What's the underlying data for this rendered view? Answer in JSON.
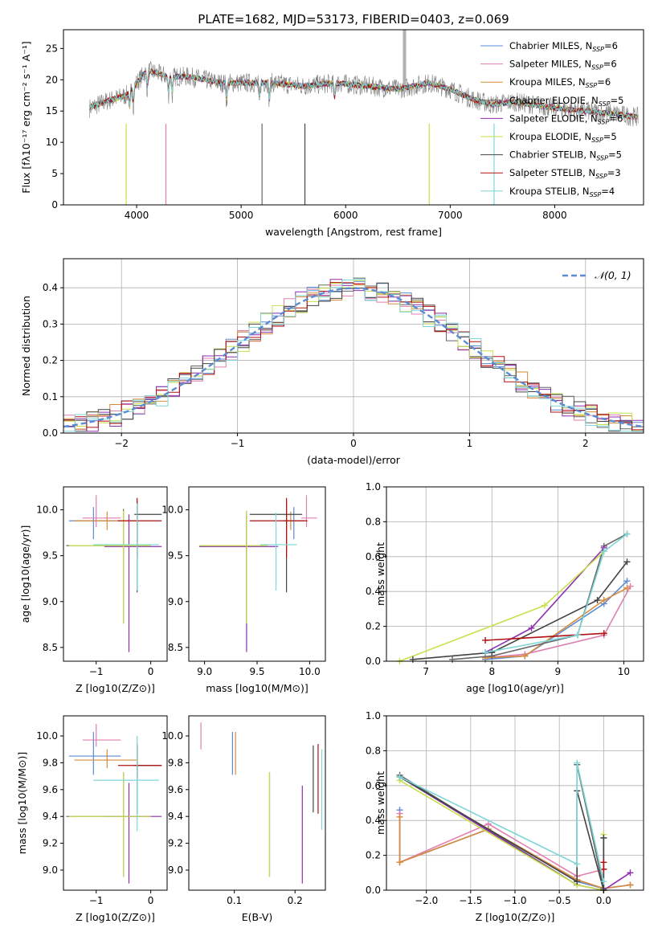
{
  "title": "PLATE=1682, MJD=53173, FIBERID=0403, z=0.069",
  "colors": [
    "#5b8bd4",
    "#e07fb0",
    "#d98a3a",
    "#666666",
    "#8e2fb0",
    "#c7e04a",
    "#444444",
    "#b01010",
    "#7fd6d6"
  ],
  "legend": [
    {
      "base": "Chabrier MILES, N",
      "sub": "SSP",
      "val": "=6"
    },
    {
      "base": "Salpeter MILES, N",
      "sub": "SSP",
      "val": "=6"
    },
    {
      "base": "Kroupa MILES, N",
      "sub": "SSP",
      "val": "=6"
    },
    {
      "base": "Chabrier ELODIE, N",
      "sub": "SSP",
      "val": "=5"
    },
    {
      "base": "Salpeter ELODIE, N",
      "sub": "SSP",
      "val": "=6"
    },
    {
      "base": "Kroupa ELODIE, N",
      "sub": "SSP",
      "val": "=5"
    },
    {
      "base": "Chabrier STELIB, N",
      "sub": "SSP",
      "val": "=5"
    },
    {
      "base": "Salpeter STELIB, N",
      "sub": "SSP",
      "val": "=3"
    },
    {
      "base": "Kroupa STELIB, N",
      "sub": "SSP",
      "val": "=4"
    }
  ],
  "chart_data": [
    {
      "id": "spectrum",
      "type": "line",
      "xlabel": "wavelength [Angstrom, rest frame]",
      "ylabel": "Flux [fλ10⁻¹⁷ erg cm⁻² s⁻¹ A⁻¹]",
      "xlim": [
        3300,
        8850
      ],
      "ylim": [
        0,
        28
      ],
      "xticks": [
        4000,
        5000,
        6000,
        7000,
        8000
      ],
      "yticks": [
        0,
        5,
        10,
        15,
        20,
        25
      ],
      "continuum_x": [
        3550,
        3700,
        3900,
        4100,
        4300,
        4500,
        4800,
        5000,
        5300,
        5600,
        5900,
        6200,
        6500,
        6800,
        7000,
        7200,
        7400,
        7600,
        7800,
        8000,
        8300,
        8600,
        8800
      ],
      "continuum_y": [
        15.5,
        16.5,
        17.5,
        21.5,
        20.5,
        20.5,
        19.5,
        19.5,
        19.5,
        19.0,
        19.5,
        19.0,
        18.5,
        19.5,
        18.5,
        17.0,
        16.0,
        16.5,
        16.0,
        15.5,
        15.0,
        14.5,
        14.0
      ]
    },
    {
      "id": "residuals",
      "type": "step-histogram",
      "xlabel": "(data-model)/error",
      "ylabel": "Normed distribution",
      "xlim": [
        -2.5,
        2.5
      ],
      "ylim": [
        0,
        0.48
      ],
      "xticks": [
        -2,
        -1,
        0,
        1,
        2
      ],
      "yticks": [
        0.0,
        0.1,
        0.2,
        0.3,
        0.4
      ],
      "reference_label": "N(0,1)",
      "reference_mean": 0,
      "reference_sigma": 1
    },
    {
      "id": "age_vs_Z",
      "type": "errorbar",
      "xlabel": "Z [log10(Z/Z⊙)]",
      "ylabel": "age  [log10(age/yr)]",
      "xlim": [
        -1.6,
        0.3
      ],
      "ylim": [
        8.35,
        10.25
      ],
      "xticks": [
        -1,
        0
      ],
      "yticks": [
        8.5,
        9.0,
        9.5,
        10.0
      ],
      "points": [
        {
          "x": -1.05,
          "y": 9.88,
          "xerr": [
            0.45,
            0.5
          ],
          "yerr": [
            0.2,
            0.15
          ]
        },
        {
          "x": -1.0,
          "y": 9.91,
          "xerr": [
            0.25,
            0.45
          ],
          "yerr": [
            0.1,
            0.25
          ]
        },
        {
          "x": -0.8,
          "y": 9.88,
          "xerr": [
            0.6,
            0.55
          ],
          "yerr": [
            0.1,
            0.1
          ]
        },
        {
          "x": -0.5,
          "y": 9.61,
          "xerr": [
            1.05,
            0.5
          ],
          "yerr": [
            0.85,
            0.4
          ]
        },
        {
          "x": -0.4,
          "y": 9.6,
          "xerr": [
            0.45,
            0.6
          ],
          "yerr": [
            1.15,
            0.35
          ]
        },
        {
          "x": -0.5,
          "y": 9.61,
          "xerr": [
            1.0,
            0.5
          ],
          "yerr": [
            0.85,
            0.38
          ]
        },
        {
          "x": -0.25,
          "y": 9.95,
          "xerr": [
            0.05,
            0.45
          ],
          "yerr": [
            0.85,
            0.15
          ]
        },
        {
          "x": -0.25,
          "y": 9.88,
          "xerr": [
            0.35,
            0.45
          ],
          "yerr": [
            0.4,
            0.25
          ]
        },
        {
          "x": -0.25,
          "y": 9.62,
          "xerr": [
            0.8,
            0.4
          ],
          "yerr": [
            0.5,
            0.45
          ]
        }
      ]
    },
    {
      "id": "age_vs_mass",
      "type": "errorbar",
      "xlabel": "mass [log10(M/M⊙)]",
      "ylabel": "",
      "xlim": [
        8.85,
        10.15
      ],
      "ylim": [
        8.35,
        10.25
      ],
      "xticks": [
        9.0,
        9.5,
        10.0
      ],
      "yticks": [
        8.5,
        9.0,
        9.5,
        10.0
      ],
      "points": [
        {
          "x": 9.85,
          "y": 9.88,
          "xerr": [
            0.1,
            0.1
          ],
          "yerr": [
            0.2,
            0.15
          ]
        },
        {
          "x": 9.97,
          "y": 9.91,
          "xerr": [
            0.05,
            0.1
          ],
          "yerr": [
            0.1,
            0.25
          ]
        },
        {
          "x": 9.82,
          "y": 9.88,
          "xerr": [
            0.05,
            0.1
          ],
          "yerr": [
            0.1,
            0.1
          ]
        },
        {
          "x": 9.4,
          "y": 9.61,
          "xerr": [
            0.45,
            0.2
          ],
          "yerr": [
            0.85,
            0.38
          ]
        },
        {
          "x": 9.4,
          "y": 9.6,
          "xerr": [
            0.45,
            0.3
          ],
          "yerr": [
            1.15,
            0.35
          ]
        },
        {
          "x": 9.4,
          "y": 9.61,
          "xerr": [
            0.45,
            0.2
          ],
          "yerr": [
            0.85,
            0.38
          ]
        },
        {
          "x": 9.78,
          "y": 9.95,
          "xerr": [
            0.35,
            0.15
          ],
          "yerr": [
            0.85,
            0.15
          ]
        },
        {
          "x": 9.78,
          "y": 9.88,
          "xerr": [
            0.35,
            0.2
          ],
          "yerr": [
            0.4,
            0.25
          ]
        },
        {
          "x": 9.68,
          "y": 9.62,
          "xerr": [
            0.15,
            0.2
          ],
          "yerr": [
            0.5,
            0.35
          ]
        }
      ]
    },
    {
      "id": "weight_vs_age",
      "type": "line",
      "xlabel": "age  [log10(age/yr)]",
      "ylabel": "mass weight",
      "xlim": [
        6.4,
        10.3
      ],
      "ylim": [
        0,
        1
      ],
      "xticks": [
        7,
        8,
        9,
        10
      ],
      "yticks": [
        0.0,
        0.2,
        0.4,
        0.6,
        0.8,
        1.0
      ],
      "series": [
        {
          "x": [
            7.9,
            8.5,
            9.7,
            10.05
          ],
          "y": [
            0.01,
            0.03,
            0.33,
            0.46
          ]
        },
        {
          "x": [
            7.9,
            8.5,
            9.7,
            10.1
          ],
          "y": [
            0.02,
            0.04,
            0.15,
            0.43
          ]
        },
        {
          "x": [
            7.9,
            8.5,
            9.7,
            10.05
          ],
          "y": [
            0.02,
            0.03,
            0.35,
            0.42
          ]
        },
        {
          "x": [
            7.4,
            8.0,
            9.3,
            9.7,
            10.05
          ],
          "y": [
            0.01,
            0.03,
            0.15,
            0.66,
            0.73
          ]
        },
        {
          "x": [
            7.9,
            8.6,
            9.7
          ],
          "y": [
            0.05,
            0.19,
            0.65
          ]
        },
        {
          "x": [
            6.6,
            8.8,
            9.7
          ],
          "y": [
            0.0,
            0.32,
            0.63
          ]
        },
        {
          "x": [
            6.8,
            8.0,
            9.6,
            10.05
          ],
          "y": [
            0.01,
            0.05,
            0.35,
            0.57
          ]
        },
        {
          "x": [
            7.9,
            9.7
          ],
          "y": [
            0.12,
            0.16
          ]
        },
        {
          "x": [
            7.9,
            9.3,
            9.7,
            10.05
          ],
          "y": [
            0.05,
            0.15,
            0.63,
            0.73
          ]
        }
      ]
    },
    {
      "id": "mass_vs_Z",
      "type": "errorbar",
      "xlabel": "Z [log10(Z/Z⊙)]",
      "ylabel": "mass [log10(M/M⊙)]",
      "xlim": [
        -1.6,
        0.3
      ],
      "ylim": [
        8.85,
        10.15
      ],
      "xticks": [
        -1,
        0
      ],
      "yticks": [
        9.0,
        9.2,
        9.4,
        9.6,
        9.8,
        10.0
      ],
      "points": [
        {
          "x": -1.05,
          "y": 9.85,
          "xerr": [
            0.45,
            0.5
          ],
          "yerr": [
            0.14,
            0.18
          ]
        },
        {
          "x": -1.0,
          "y": 9.97,
          "xerr": [
            0.25,
            0.45
          ],
          "yerr": [
            0.05,
            0.12
          ]
        },
        {
          "x": -0.8,
          "y": 9.82,
          "xerr": [
            0.6,
            0.55
          ],
          "yerr": [
            0.06,
            0.08
          ]
        },
        {
          "x": -0.5,
          "y": 9.4,
          "xerr": [
            1.05,
            0.5
          ],
          "yerr": [
            0.45,
            0.33
          ]
        },
        {
          "x": -0.4,
          "y": 9.4,
          "xerr": [
            0.45,
            0.6
          ],
          "yerr": [
            0.5,
            0.25
          ]
        },
        {
          "x": -0.5,
          "y": 9.4,
          "xerr": [
            1.0,
            0.5
          ],
          "yerr": [
            0.45,
            0.33
          ]
        },
        {
          "x": -0.25,
          "y": 9.78,
          "xerr": [
            0.05,
            0.45
          ],
          "yerr": [
            0.36,
            0.15
          ]
        },
        {
          "x": -0.25,
          "y": 9.78,
          "xerr": [
            0.35,
            0.45
          ],
          "yerr": [
            0.1,
            0.16
          ]
        },
        {
          "x": -0.25,
          "y": 9.67,
          "xerr": [
            0.8,
            0.4
          ],
          "yerr": [
            0.38,
            0.33
          ]
        }
      ]
    },
    {
      "id": "mass_vs_EBV",
      "type": "errorbar",
      "xlabel": "E(B-V)",
      "ylabel": "",
      "xlim": [
        0.025,
        0.25
      ],
      "ylim": [
        8.85,
        10.15
      ],
      "xticks": [
        0.1,
        0.2
      ],
      "yticks": [
        9.0,
        9.2,
        9.4,
        9.6,
        9.8,
        10.0
      ],
      "points": [
        {
          "x": 0.097,
          "y": 9.85,
          "xerr": [
            0,
            0
          ],
          "yerr": [
            0.14,
            0.18
          ]
        },
        {
          "x": 0.045,
          "y": 10.0,
          "xerr": [
            0,
            0
          ],
          "yerr": [
            0.1,
            0.1
          ]
        },
        {
          "x": 0.102,
          "y": 9.85,
          "xerr": [
            0,
            0
          ],
          "yerr": [
            0.14,
            0.18
          ]
        },
        {
          "x": 0.158,
          "y": 9.4,
          "xerr": [
            0,
            0
          ],
          "yerr": [
            0.45,
            0.33
          ]
        },
        {
          "x": 0.212,
          "y": 9.25,
          "xerr": [
            0,
            0
          ],
          "yerr": [
            0.35,
            0.38
          ]
        },
        {
          "x": 0.158,
          "y": 9.4,
          "xerr": [
            0,
            0
          ],
          "yerr": [
            0.45,
            0.33
          ]
        },
        {
          "x": 0.23,
          "y": 9.68,
          "xerr": [
            0,
            0
          ],
          "yerr": [
            0.25,
            0.25
          ]
        },
        {
          "x": 0.238,
          "y": 9.78,
          "xerr": [
            0,
            0
          ],
          "yerr": [
            0.36,
            0.16
          ]
        },
        {
          "x": 0.244,
          "y": 9.6,
          "xerr": [
            0,
            0
          ],
          "yerr": [
            0.3,
            0.3
          ]
        }
      ]
    },
    {
      "id": "weight_vs_Z",
      "type": "line",
      "xlabel": "Z [log10(Z/Z⊙)]",
      "ylabel": "mass weight",
      "xlim": [
        -2.45,
        0.45
      ],
      "ylim": [
        0,
        1
      ],
      "xticks": [
        -2.0,
        -1.5,
        -1.0,
        -0.5,
        0.0
      ],
      "yticks": [
        0.0,
        0.2,
        0.4,
        0.6,
        0.8,
        1.0
      ],
      "series": [
        {
          "x": [
            -2.3,
            -2.3,
            -1.3,
            -0.3,
            0.0,
            0.3
          ],
          "y": [
            0.46,
            0.16,
            0.35,
            0.05,
            0.01,
            0.03
          ]
        },
        {
          "x": [
            -2.3,
            -2.3,
            -1.3,
            -0.3,
            0.0
          ],
          "y": [
            0.44,
            0.16,
            0.38,
            0.08,
            0.12
          ]
        },
        {
          "x": [
            -2.3,
            -2.3,
            -1.3,
            -0.3,
            0.0,
            0.3
          ],
          "y": [
            0.42,
            0.16,
            0.35,
            0.06,
            0.01,
            0.03
          ]
        },
        {
          "x": [
            -2.3,
            -0.3,
            -0.3,
            0.0,
            0.0
          ],
          "y": [
            0.66,
            0.03,
            0.72,
            0.01,
            0.3
          ]
        },
        {
          "x": [
            -2.3,
            -0.3,
            0.0,
            0.3
          ],
          "y": [
            0.65,
            0.03,
            0.0,
            0.1
          ]
        },
        {
          "x": [
            -2.3,
            -0.3,
            0.0,
            0.0
          ],
          "y": [
            0.63,
            0.03,
            0.0,
            0.32
          ]
        },
        {
          "x": [
            -2.3,
            -0.3,
            -0.3,
            0.0,
            0.0
          ],
          "y": [
            0.65,
            0.05,
            0.57,
            0.0,
            0.3
          ]
        },
        {
          "x": [
            0.0,
            0.0
          ],
          "y": [
            0.16,
            0.12
          ]
        },
        {
          "x": [
            -2.3,
            -0.3,
            -0.3,
            0.0
          ],
          "y": [
            0.65,
            0.15,
            0.73,
            0.05
          ]
        }
      ]
    }
  ]
}
